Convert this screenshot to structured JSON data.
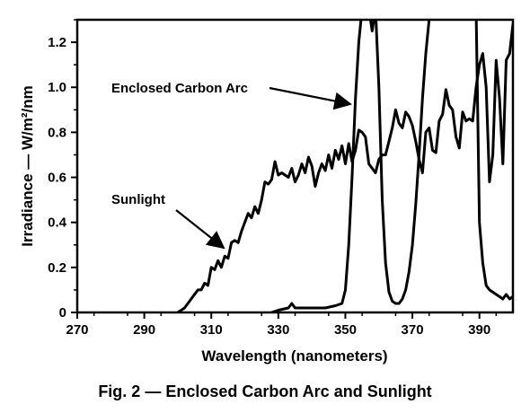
{
  "chart_data": {
    "type": "line",
    "title": "",
    "caption": "Fig. 2 — Enclosed Carbon Arc and Sunlight",
    "xlabel": "Wavelength (nanometers)",
    "ylabel": "Irradiance — W/m²/nm",
    "xlim": [
      270,
      400
    ],
    "ylim": [
      0,
      1.3
    ],
    "x_ticks": [
      "270",
      "290",
      "310",
      "330",
      "350",
      "370",
      "390"
    ],
    "y_ticks": [
      "0",
      "0.2",
      "0.4",
      "0.6",
      "0.8",
      "1.0",
      "1.2"
    ],
    "grid": false,
    "annotations": [
      {
        "text": "Enclosed Carbon Arc",
        "series": "carbon_arc",
        "x": 354,
        "y": 0.93
      },
      {
        "text": "Sunlight",
        "series": "sunlight",
        "x": 316,
        "y": 0.28
      }
    ],
    "series": [
      {
        "id": "sunlight",
        "x": [
          300,
          301,
          302,
          303,
          304,
          305,
          306,
          307,
          308,
          309,
          310,
          311,
          312,
          313,
          314,
          315,
          316,
          317,
          318,
          319,
          320,
          321,
          322,
          323,
          324,
          325,
          326,
          327,
          328,
          329,
          330,
          331,
          332,
          333,
          334,
          335,
          336,
          337,
          338,
          339,
          340,
          341,
          342,
          343,
          344,
          345,
          346,
          347,
          348,
          349,
          350,
          351,
          352,
          353,
          354,
          355,
          356,
          357,
          358,
          359,
          360,
          361,
          362,
          363,
          364,
          365,
          366,
          367,
          368,
          369,
          370,
          371,
          372,
          373,
          374,
          375,
          376,
          377,
          378,
          379,
          380,
          381,
          382,
          383,
          384,
          385,
          386,
          387,
          388,
          389,
          390,
          391,
          392,
          393,
          394,
          395,
          396,
          397,
          398,
          399,
          400
        ],
        "values": [
          0.0,
          0.01,
          0.02,
          0.04,
          0.06,
          0.08,
          0.1,
          0.1,
          0.13,
          0.12,
          0.2,
          0.19,
          0.23,
          0.2,
          0.25,
          0.24,
          0.31,
          0.32,
          0.31,
          0.36,
          0.4,
          0.44,
          0.42,
          0.47,
          0.44,
          0.5,
          0.58,
          0.57,
          0.59,
          0.67,
          0.61,
          0.62,
          0.61,
          0.6,
          0.64,
          0.58,
          0.61,
          0.66,
          0.62,
          0.69,
          0.65,
          0.56,
          0.62,
          0.66,
          0.63,
          0.7,
          0.64,
          0.72,
          0.68,
          0.74,
          0.66,
          0.75,
          0.67,
          0.72,
          0.81,
          0.8,
          0.78,
          0.66,
          0.64,
          0.62,
          0.68,
          0.7,
          0.7,
          0.76,
          0.82,
          0.9,
          0.84,
          0.82,
          0.89,
          0.87,
          0.83,
          0.76,
          0.68,
          0.62,
          0.8,
          0.82,
          0.72,
          0.71,
          0.85,
          0.88,
          0.99,
          0.92,
          0.9,
          0.78,
          0.73,
          0.89,
          0.85,
          0.86,
          0.85,
          1.0,
          1.1,
          1.15,
          1.0,
          0.58,
          0.7,
          1.12,
          0.95,
          0.66,
          1.12,
          1.15,
          1.28
        ]
      },
      {
        "id": "carbon_arc",
        "x": [
          328,
          330,
          333,
          334,
          335,
          338,
          341,
          344,
          347,
          349,
          350,
          351,
          352,
          353,
          354,
          355,
          356,
          357,
          358,
          359,
          360,
          361,
          362,
          363,
          364,
          365,
          366,
          367,
          368,
          369,
          370,
          371,
          372,
          373,
          374,
          375,
          376,
          377,
          378,
          379,
          380,
          381,
          382,
          383,
          384,
          385,
          386,
          387,
          388,
          389,
          390,
          391,
          392,
          393,
          394,
          395,
          396,
          397,
          398,
          399,
          400
        ],
        "values": [
          0.0,
          0.01,
          0.02,
          0.04,
          0.02,
          0.02,
          0.02,
          0.02,
          0.03,
          0.04,
          0.1,
          0.3,
          0.6,
          0.95,
          1.2,
          1.35,
          1.35,
          1.35,
          1.25,
          1.35,
          1.0,
          0.5,
          0.22,
          0.09,
          0.05,
          0.04,
          0.04,
          0.06,
          0.1,
          0.18,
          0.3,
          0.48,
          0.7,
          0.95,
          1.15,
          1.3,
          1.35,
          1.35,
          1.35,
          1.35,
          1.35,
          1.35,
          1.35,
          1.35,
          1.35,
          1.35,
          1.35,
          1.35,
          1.35,
          1.35,
          0.4,
          0.22,
          0.12,
          0.1,
          0.09,
          0.08,
          0.07,
          0.06,
          0.08,
          0.06,
          0.07
        ]
      }
    ]
  }
}
